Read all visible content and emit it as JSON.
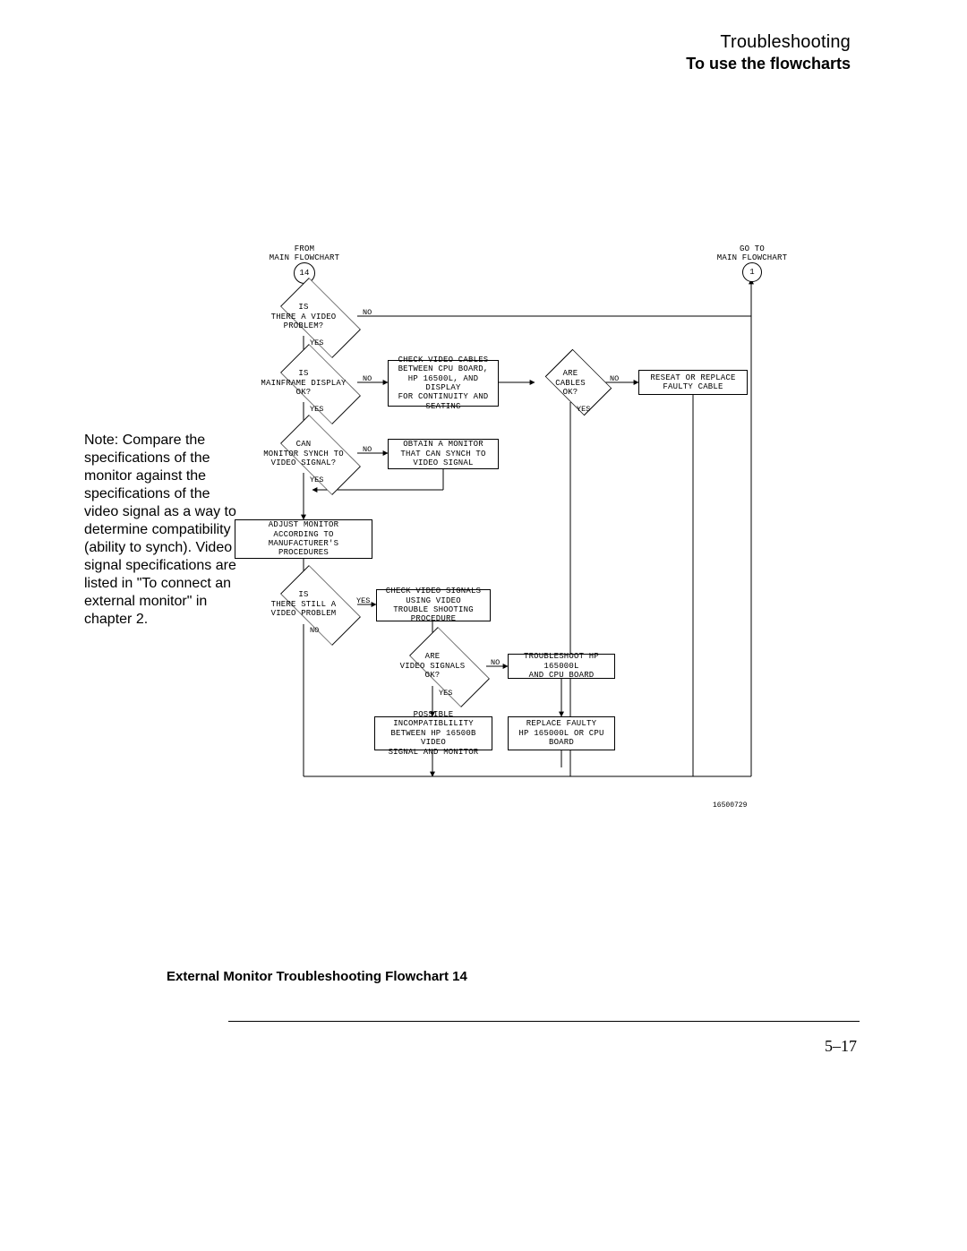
{
  "header": {
    "title": "Troubleshooting",
    "subtitle": "To use the flowcharts"
  },
  "note": "Note:  Compare the specifications of the monitor against the specifications of the video signal as a way to determine compatibility (ability to synch).  Video signal specifications are listed in \"To connect an external monitor\" in chapter 2.",
  "caption": "External Monitor Troubleshooting Flowchart 14",
  "page_number": "5–17",
  "ref_id": "16500729",
  "flow": {
    "entry_left": {
      "label": "FROM\nMAIN FLOWCHART 1",
      "circle": "14"
    },
    "entry_right": {
      "label": "GO TO\nMAIN FLOWCHART 1",
      "circle": "1"
    },
    "d1": {
      "text": "IS\nTHERE A VIDEO\nPROBLEM?",
      "yes": "YES",
      "no": "NO"
    },
    "d2": {
      "text": "IS\nMAINFRAME DISPLAY\nOK?",
      "yes": "YES",
      "no": "NO"
    },
    "d3": {
      "text": "ARE\nCABLES\nOK?",
      "yes": "YES",
      "no": "NO"
    },
    "d4": {
      "text": "CAN\nMONITOR SYNCH TO\nVIDEO SIGNAL?",
      "yes": "YES",
      "no": "NO"
    },
    "d5": {
      "text": "IS\nTHERE STILL A\nVIDEO PROBLEM",
      "yes": "YES",
      "no": "NO"
    },
    "d6": {
      "text": "ARE\nVIDEO SIGNALS\nOK?",
      "yes": "YES",
      "no": "NO"
    },
    "r_cables": "CHECK VIDEO CABLES\nBETWEEN CPU BOARD,\nHP 16500L, AND DISPLAY\nFOR CONTINUITY AND\nSEATING",
    "r_reseat": "RESEAT OR REPLACE\nFAULTY CABLE",
    "r_obtain": "OBTAIN A MONITOR\nTHAT CAN SYNCH TO\nVIDEO SIGNAL",
    "r_adjust": "ADJUST MONITOR\nACCORDING TO MANUFACTURER'S\nPROCEDURES",
    "r_check_sig": "CHECK VIDEO SIGNALS\nUSING VIDEO\nTROUBLE SHOOTING PROCEDURE",
    "r_tshoot": "TROUBLESHOOT HP 165000L\nAND CPU BOARD",
    "r_incompat": "POSSIBLE INCOMPATIBLILITY\nBETWEEN HP 16500B VIDEO\nSIGNAL AND MONITOR",
    "r_replace": "REPLACE FAULTY\nHP 165000L OR CPU\nBOARD"
  },
  "style": {
    "page_bg": "#ffffff",
    "line_color": "#000000",
    "line_width": 1,
    "flow_font": "Courier New",
    "flow_fontsize": 9,
    "note_fontsize": 16,
    "header_title_fontsize": 20,
    "header_sub_fontsize": 18,
    "caption_fontsize": 15
  }
}
